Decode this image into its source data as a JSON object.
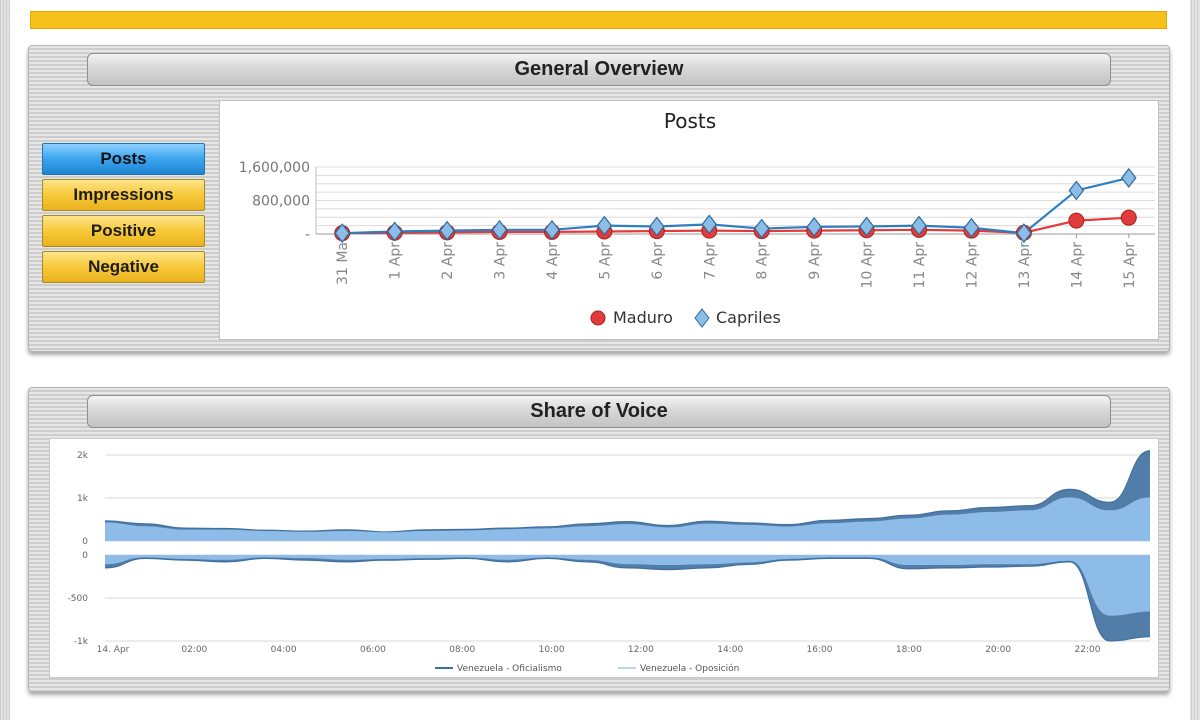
{
  "colors": {
    "brand_bar": "#f8c01a",
    "active_tab": "#2e96e6",
    "inactive_tab": "#f3c030",
    "maduro": "#e23b3b",
    "capriles": "#2e7fc0",
    "sov_fill": "#8dbce8",
    "sov_dark": "#3f6f9f"
  },
  "general_overview": {
    "title": "General Overview",
    "tabs": [
      {
        "label": "Posts",
        "active": true
      },
      {
        "label": "Impressions",
        "active": false
      },
      {
        "label": "Positive",
        "active": false
      },
      {
        "label": "Negative",
        "active": false
      }
    ]
  },
  "share_of_voice": {
    "title": "Share of Voice"
  },
  "chart_data": [
    {
      "type": "line",
      "title": "Posts",
      "categories": [
        "31 Ma",
        "1 Apr",
        "2 Apr",
        "3 Apr",
        "4 Apr",
        "5 Apr",
        "6 Apr",
        "7 Apr",
        "8 Apr",
        "9 Apr",
        "10 Apr",
        "11 Apr",
        "12 Apr",
        "13 Apr",
        "14 Apr",
        "15 Apr"
      ],
      "y_ticks": [
        "1,600,000",
        "800,000",
        "-"
      ],
      "ylim": [
        0,
        1600000
      ],
      "series": [
        {
          "name": "Maduro",
          "marker": "circle",
          "color": "#e23b3b",
          "values": [
            20000,
            30000,
            40000,
            50000,
            50000,
            60000,
            70000,
            80000,
            70000,
            80000,
            90000,
            100000,
            80000,
            30000,
            320000,
            390000
          ]
        },
        {
          "name": "Capriles",
          "marker": "diamond",
          "color": "#2e7fc0",
          "values": [
            20000,
            60000,
            80000,
            100000,
            100000,
            200000,
            180000,
            230000,
            130000,
            170000,
            180000,
            200000,
            150000,
            20000,
            1040000,
            1340000
          ]
        }
      ],
      "legend": "bottom-center"
    },
    {
      "type": "area",
      "x_ticks": [
        "14. Apr",
        "02:00",
        "04:00",
        "06:00",
        "08:00",
        "10:00",
        "12:00",
        "14:00",
        "16:00",
        "18:00",
        "20:00",
        "22:00"
      ],
      "x_hours": [
        0,
        2,
        4,
        6,
        8,
        10,
        12,
        14,
        16,
        18,
        20,
        22
      ],
      "upper_y_ticks": [
        "2k",
        "1k",
        "0"
      ],
      "lower_y_ticks": [
        "0",
        "-500",
        "-1k"
      ],
      "upper_ylim": [
        0,
        2000
      ],
      "lower_ylim": [
        -1000,
        0
      ],
      "legend": "bottom-center",
      "series": [
        {
          "name": "Venezuela - Oficialismo",
          "color": "#3f6f9f",
          "x": [
            0,
            0.9,
            1.8,
            2.7,
            3.6,
            4.5,
            5.4,
            6.3,
            7.2,
            8.1,
            9,
            9.9,
            10.8,
            11.7,
            12.6,
            13.5,
            14.4,
            15.3,
            16.2,
            17.1,
            18,
            18.9,
            19.8,
            20.7,
            21.6,
            22.5,
            23.4
          ],
          "upper": [
            470,
            400,
            300,
            290,
            250,
            230,
            260,
            210,
            260,
            270,
            300,
            330,
            400,
            450,
            360,
            460,
            420,
            380,
            480,
            520,
            600,
            700,
            780,
            820,
            1200,
            900,
            2100
          ],
          "lower": [
            -150,
            -40,
            -60,
            -80,
            -40,
            -60,
            -80,
            -60,
            -50,
            -40,
            -80,
            -40,
            -80,
            -150,
            -170,
            -150,
            -110,
            -60,
            -40,
            -40,
            -160,
            -150,
            -140,
            -130,
            -80,
            -1000,
            -950
          ]
        },
        {
          "name": "Venezuela - Oposición",
          "color": "#b8d6f2",
          "x": [
            0,
            0.9,
            1.8,
            2.7,
            3.6,
            4.5,
            5.4,
            6.3,
            7.2,
            8.1,
            9,
            9.9,
            10.8,
            11.7,
            12.6,
            13.5,
            14.4,
            15.3,
            16.2,
            17.1,
            18,
            18.9,
            19.8,
            20.7,
            21.6,
            22.5,
            23.4
          ],
          "upper": [
            420,
            330,
            250,
            250,
            220,
            200,
            220,
            190,
            220,
            230,
            260,
            280,
            330,
            380,
            300,
            390,
            360,
            320,
            400,
            440,
            510,
            600,
            660,
            700,
            1000,
            700,
            1000
          ],
          "lower": [
            -100,
            -20,
            -40,
            -50,
            -20,
            -30,
            -50,
            -40,
            -30,
            -20,
            -50,
            -20,
            -50,
            -100,
            -110,
            -100,
            -80,
            -40,
            -20,
            -20,
            -110,
            -110,
            -100,
            -100,
            -60,
            -700,
            -650
          ]
        }
      ]
    }
  ]
}
